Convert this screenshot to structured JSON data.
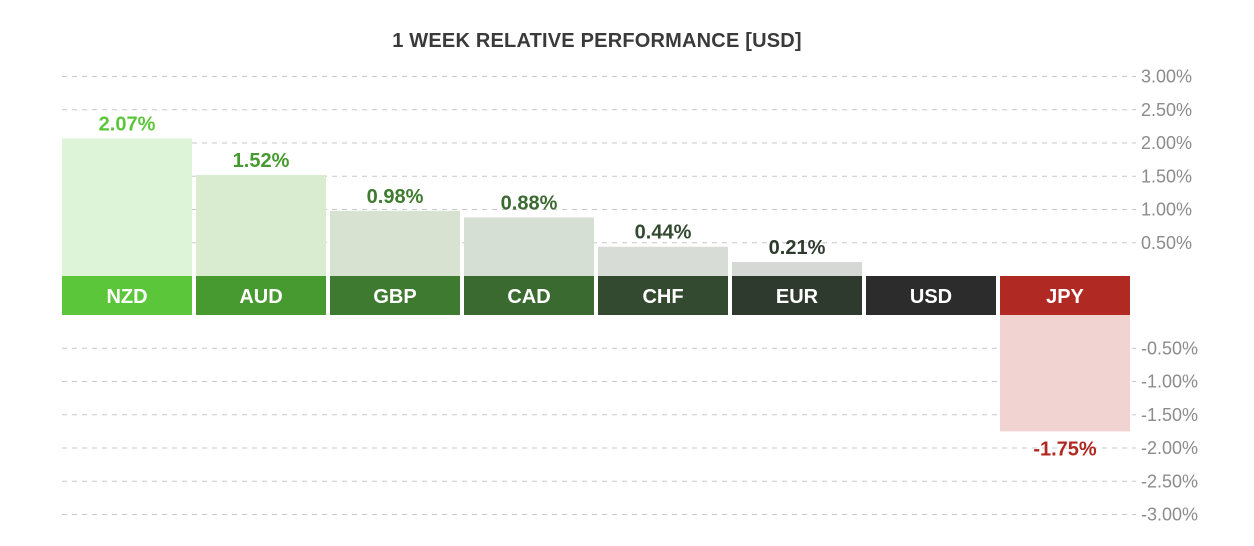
{
  "chart_data": {
    "type": "bar",
    "title": "1 WEEK RELATIVE PERFORMANCE  [USD]",
    "categories": [
      "NZD",
      "AUD",
      "GBP",
      "CAD",
      "CHF",
      "EUR",
      "USD",
      "JPY"
    ],
    "values": [
      2.07,
      1.52,
      0.98,
      0.88,
      0.44,
      0.21,
      0,
      -1.75
    ],
    "value_labels": [
      "2.07%",
      "1.52%",
      "0.98%",
      "0.88%",
      "0.44%",
      "0.21%",
      "",
      "-1.75%"
    ],
    "ylim": [
      -3,
      3
    ],
    "yticks": [
      3,
      2.5,
      2,
      1.5,
      1,
      0.5,
      -0.5,
      -1,
      -1.5,
      -2,
      -2.5,
      -3
    ],
    "ytick_labels": [
      "3.00%",
      "2.50%",
      "2.00%",
      "1.50%",
      "1.00%",
      "0.50%",
      "-0.50%",
      "-1.00%",
      "-1.50%",
      "-2.00%",
      "-2.50%",
      "-3.00%"
    ],
    "grid": true,
    "colors": {
      "label_band": [
        "#5cc63a",
        "#479a2f",
        "#3e7a2f",
        "#3b6a31",
        "#334a30",
        "#2f3a2e",
        "#2c2c2c",
        "#b02a23"
      ],
      "bar_fill": [
        "#def4d8",
        "#d9eccf",
        "#d7e3d0",
        "#d6dfd3",
        "#d8dcd7",
        "#d6d8d6",
        "#d8d8d8",
        "#f1d4d2"
      ],
      "value_text": [
        "#5cc63a",
        "#479a2f",
        "#3e7a2f",
        "#3b6a31",
        "#334a30",
        "#2f3a2e",
        "#2c2c2c",
        "#b02a23"
      ]
    }
  }
}
